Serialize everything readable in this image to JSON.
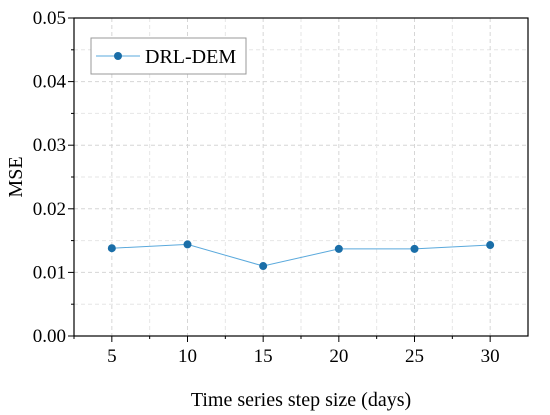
{
  "chart_data": {
    "type": "line",
    "title": "",
    "xlabel": "Time series step size (days)",
    "ylabel": "MSE",
    "x": [
      5,
      10,
      15,
      20,
      25,
      30
    ],
    "x_ticks": [
      "5",
      "10",
      "15",
      "20",
      "25",
      "30"
    ],
    "y_ticks": [
      "0.00",
      "0.01",
      "0.02",
      "0.03",
      "0.04",
      "0.05"
    ],
    "ylim": [
      0,
      0.05
    ],
    "xlim": [
      2.5,
      32.5
    ],
    "grid": true,
    "legend_position": "top-left",
    "series": [
      {
        "name": "DRL-DEM",
        "values": [
          0.0138,
          0.0144,
          0.011,
          0.0137,
          0.0137,
          0.0143
        ],
        "line_color": "#5aa9dc",
        "marker_color": "#1a6ea8"
      }
    ]
  }
}
